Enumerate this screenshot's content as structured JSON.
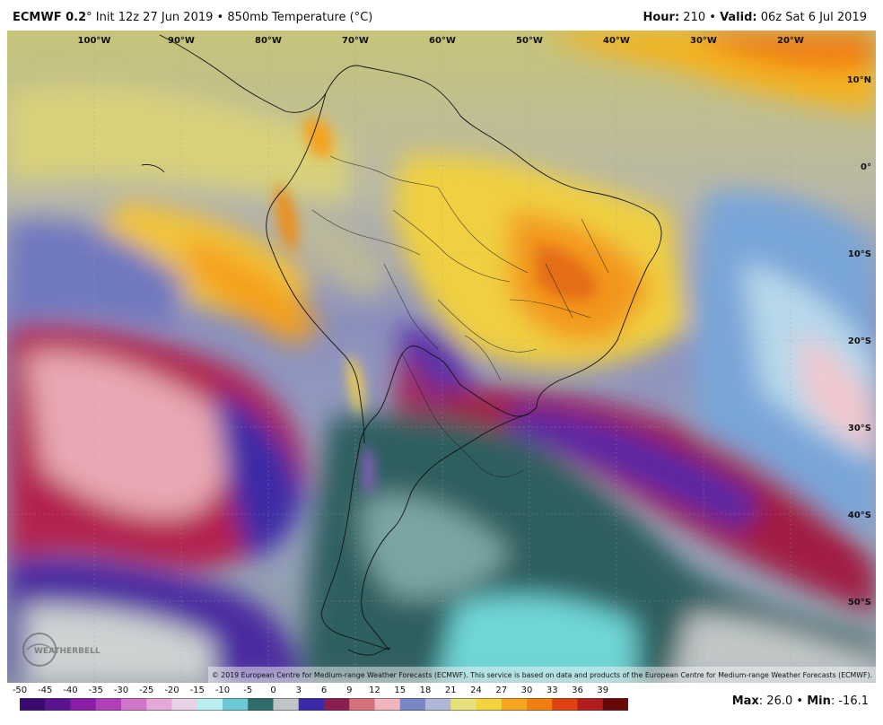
{
  "header": {
    "model": "ECMWF 0.2",
    "init_text": "° Init 12z 27 Jun 2019 • 850mb Temperature (°C)",
    "hour_label": "Hour:",
    "hour_value": " 210 • ",
    "valid_label": "Valid:",
    "valid_value": " 06z Sat 6 Jul 2019"
  },
  "map": {
    "longitude_labels": [
      "100°W",
      "90°W",
      "80°W",
      "70°W",
      "60°W",
      "50°W",
      "40°W",
      "30°W",
      "20°W"
    ],
    "latitude_labels": [
      "10°N",
      "0°",
      "10°S",
      "20°S",
      "30°S",
      "40°S",
      "50°S"
    ],
    "copyright": "© 2019 European Centre for Medium-range Weather Forecasts (ECMWF). This service is based on data and products of the European Centre for Medium-range Weather Forecasts (ECMWF).",
    "logo_text": "WEATHERBELL"
  },
  "legend": {
    "ticks": [
      "-50",
      "-45",
      "-40",
      "-35",
      "-30",
      "-25",
      "-20",
      "-15",
      "-10",
      "-5",
      "0",
      "3",
      "6",
      "9",
      "12",
      "15",
      "18",
      "21",
      "24",
      "27",
      "30",
      "33",
      "36",
      "39"
    ],
    "colors": [
      "#3a0a6e",
      "#5a1490",
      "#8a1ca8",
      "#b03fb8",
      "#d175c8",
      "#e6a8d6",
      "#e9d2e6",
      "#b8eef0",
      "#6cc8d4",
      "#2d6e6a",
      "#bfc5c5",
      "#3a2aa8",
      "#8a1e4e",
      "#d4707a",
      "#f1b5bd",
      "#7b86c6",
      "#b0b8d8",
      "#e8e07a",
      "#f2d33d",
      "#f6a51e",
      "#f07e10",
      "#e0420e",
      "#b01d1a",
      "#6a0a08"
    ],
    "max_label": "Max",
    "max_value": ": 26.0 • ",
    "min_label": "Min",
    "min_value": ": -16.1"
  }
}
